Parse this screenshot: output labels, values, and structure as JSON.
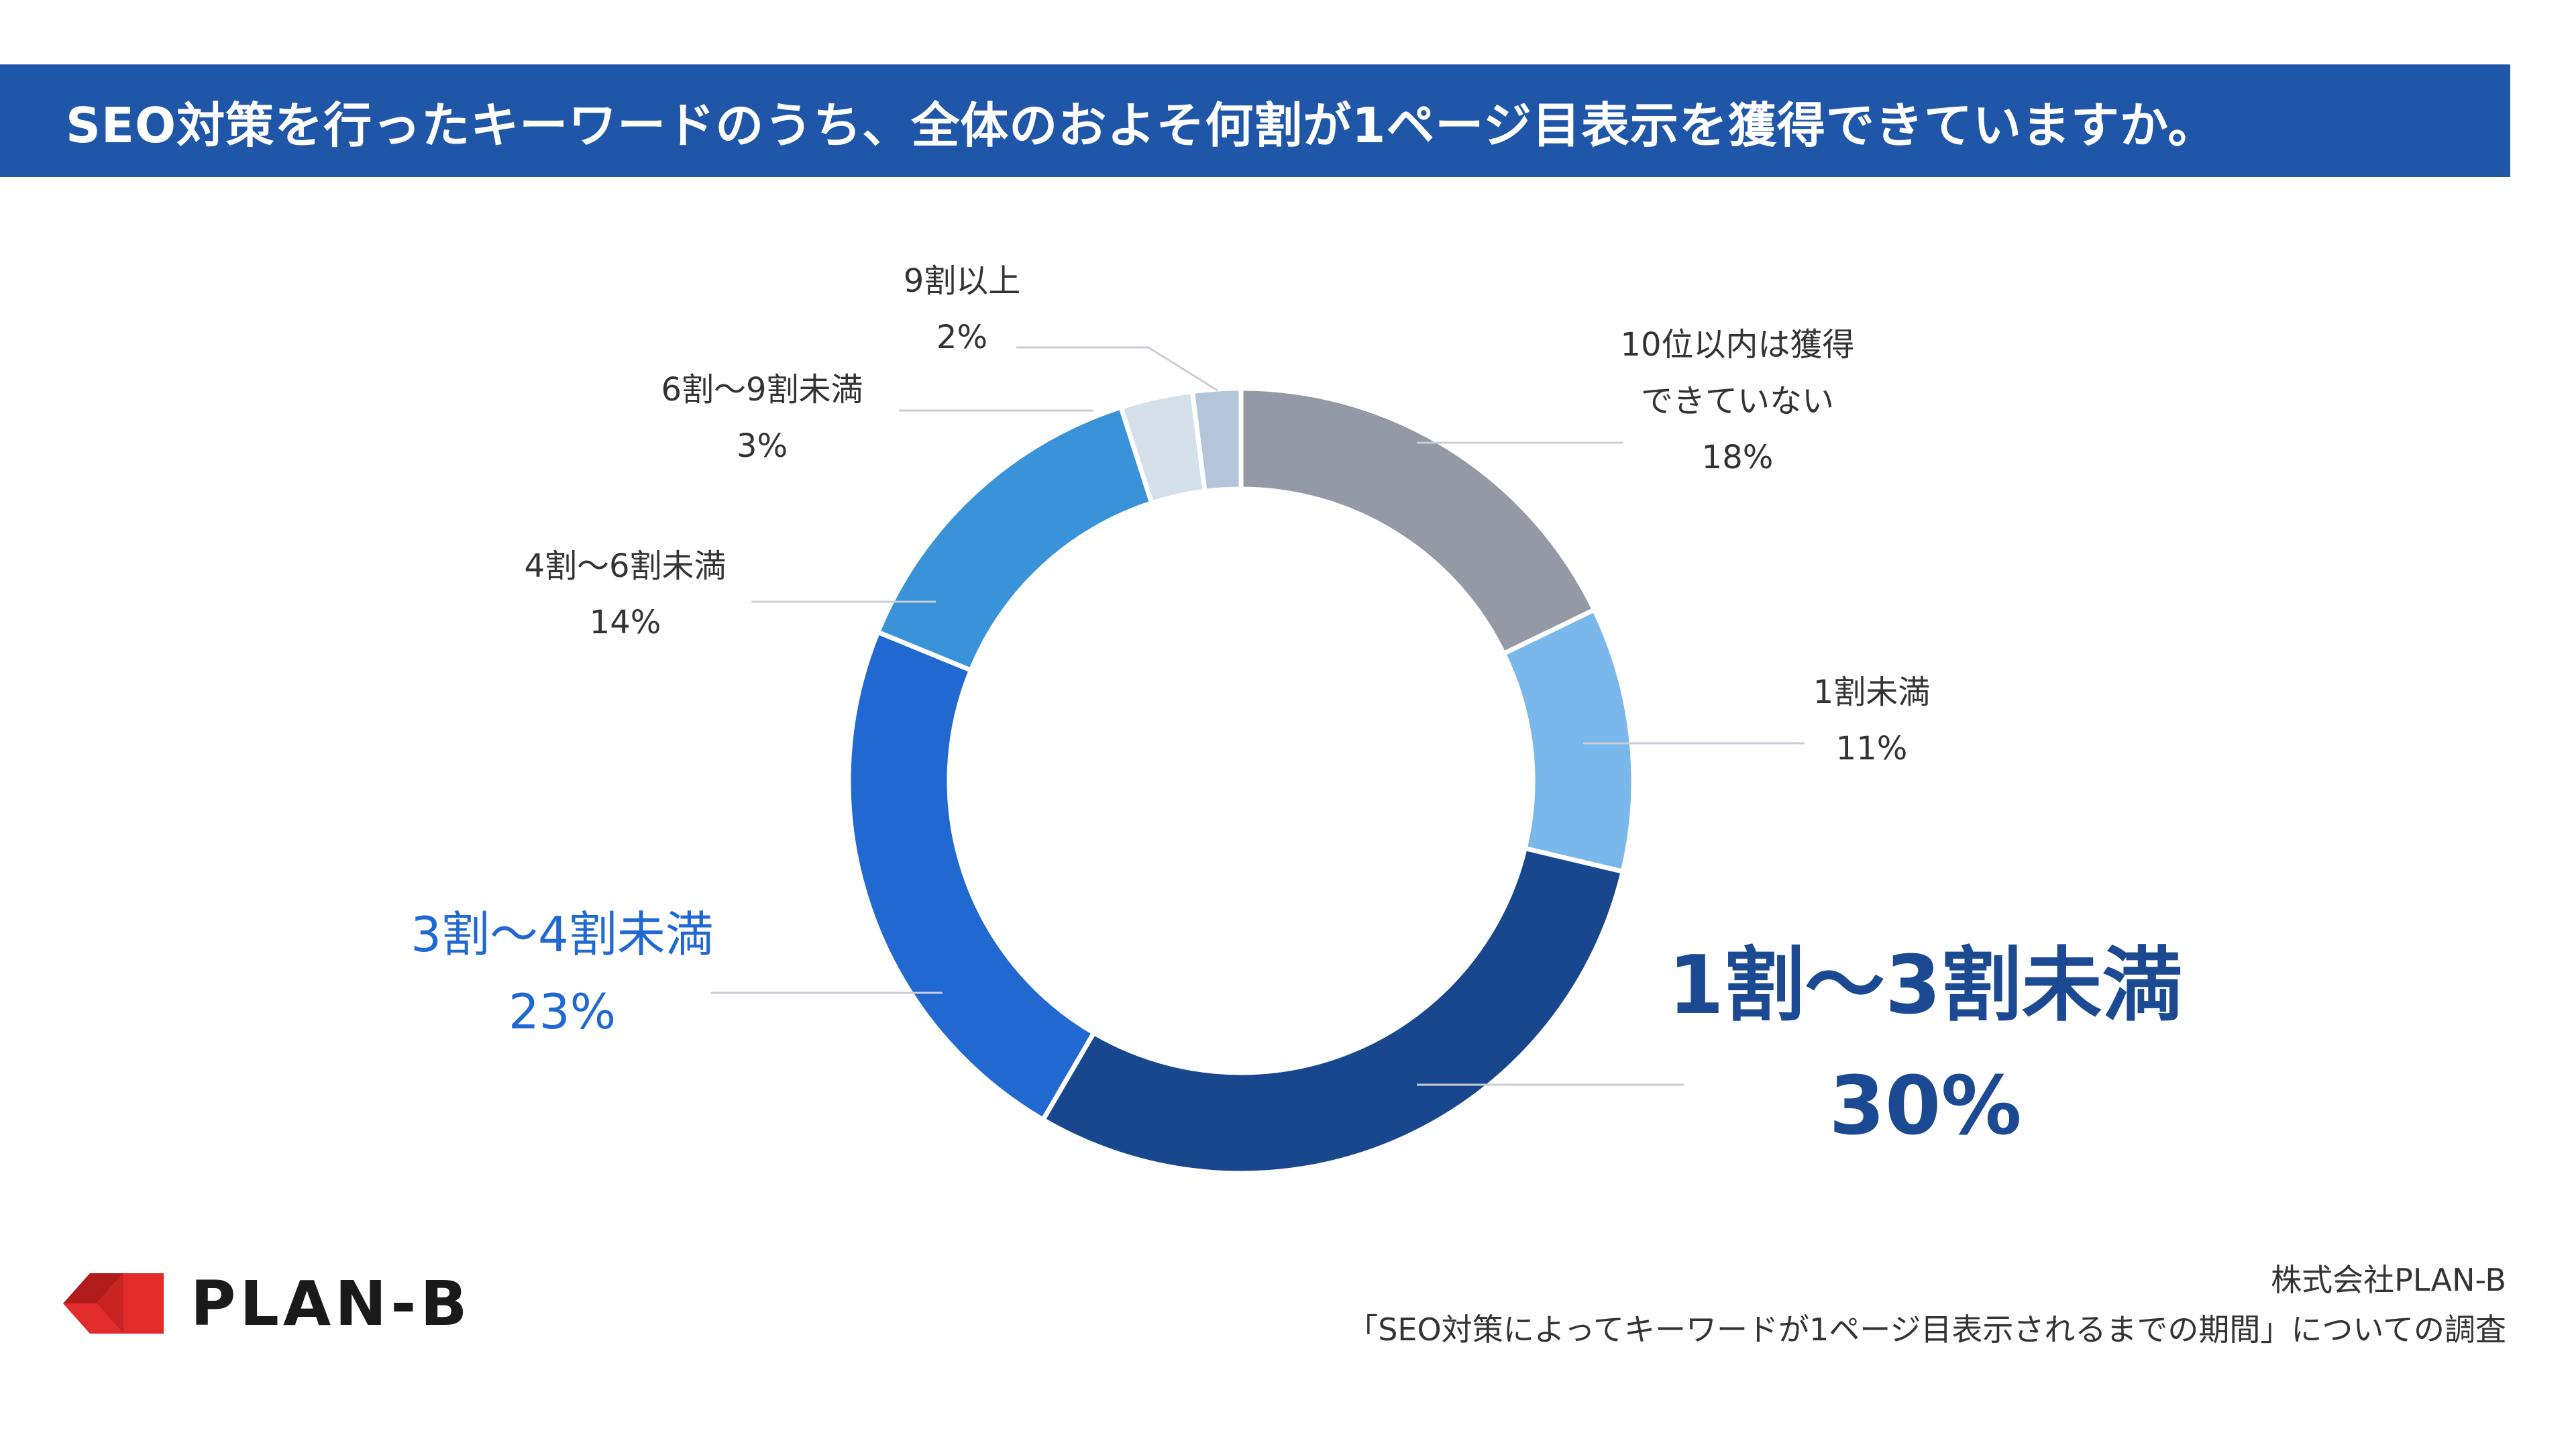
{
  "header": {
    "title": "SEO対策を行ったキーワードのうち、全体のおよそ何割が1ページ目表示を獲得できていますか。"
  },
  "chart_data": {
    "type": "pie",
    "style": "donut",
    "title": "SEO対策を行ったキーワードのうち、全体のおよそ何割が1ページ目表示を獲得できていますか。",
    "slices": [
      {
        "label_lines": [
          "10位以内は獲得",
          "できていない"
        ],
        "label": "10位以内は獲得できていない",
        "value": 18,
        "pct_text": "18%",
        "color": "#9399a5",
        "label_color": "#333333",
        "emphasis": "normal"
      },
      {
        "label_lines": [
          "1割未満"
        ],
        "label": "1割未満",
        "value": 11,
        "pct_text": "11%",
        "color": "#7ab7ea",
        "label_color": "#333333",
        "emphasis": "normal"
      },
      {
        "label_lines": [
          "1割〜3割未満"
        ],
        "label": "1割〜3割未満",
        "value": 30,
        "pct_text": "30%",
        "color": "#18478e",
        "label_color": "#1b4a92",
        "emphasis": "strong"
      },
      {
        "label_lines": [
          "3割〜4割未満"
        ],
        "label": "3割〜4割未満",
        "value": 23,
        "pct_text": "23%",
        "color": "#2168d0",
        "label_color": "#2168d0",
        "emphasis": "medium"
      },
      {
        "label_lines": [
          "4割〜6割未満"
        ],
        "label": "4割〜6割未満",
        "value": 14,
        "pct_text": "14%",
        "color": "#3a93d9",
        "label_color": "#333333",
        "emphasis": "normal"
      },
      {
        "label_lines": [
          "6割〜9割未満"
        ],
        "label": "6割〜9割未満",
        "value": 3,
        "pct_text": "3%",
        "color": "#d6e0ea",
        "label_color": "#333333",
        "emphasis": "normal"
      },
      {
        "label_lines": [
          "9割以上"
        ],
        "label": "9割以上",
        "value": 2,
        "pct_text": "2%",
        "color": "#b3c6d9",
        "label_color": "#333333",
        "emphasis": "normal"
      }
    ]
  },
  "logo": {
    "text": "PLAN-B",
    "mark_color": "#e22b2b"
  },
  "source": {
    "company": "株式会社PLAN-B",
    "survey": "「SEO対策によってキーワードが1ページ目表示されるまでの期間」についての調査"
  }
}
